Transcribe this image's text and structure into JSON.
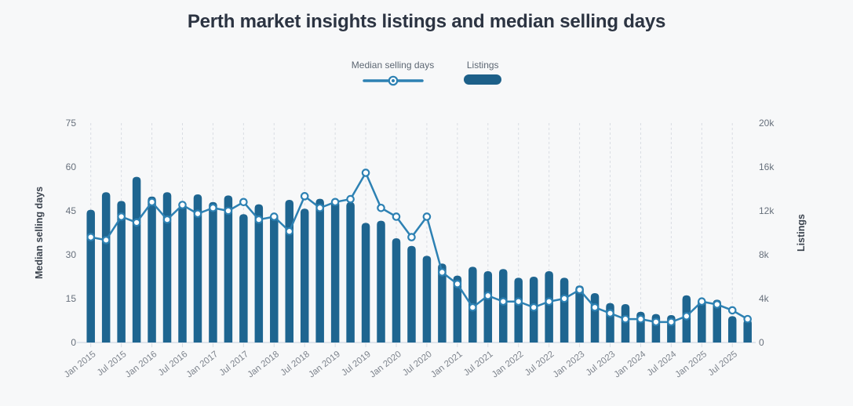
{
  "title": "Perth market insights listings and median selling days",
  "legend": [
    {
      "label": "Median selling days",
      "marker": "line-with-dot-icon"
    },
    {
      "label": "Listings",
      "marker": "rounded-bar-icon"
    }
  ],
  "colors": {
    "bar": "#1e6590",
    "line": "#2d81b3",
    "marker_fill": "#ffffff",
    "title": "#2c3442",
    "axis_tick_text": "#67707c",
    "x_label_text": "#7e848d",
    "axis_title_text": "#3b434e",
    "gridline": "#d9dde3",
    "baseline": "#dfe5ec",
    "background": "#f7f8f9"
  },
  "chart_data": {
    "type": "bar",
    "subtype": "combo-bar-line",
    "title": "Perth market insights listings and median selling days",
    "categories": [
      "Jan 2015",
      "Apr 2015",
      "Jul 2015",
      "Oct 2015",
      "Jan 2016",
      "Apr 2016",
      "Jul 2016",
      "Oct 2016",
      "Jan 2017",
      "Apr 2017",
      "Jul 2017",
      "Oct 2017",
      "Jan 2018",
      "Apr 2018",
      "Jul 2018",
      "Oct 2018",
      "Jan 2019",
      "Apr 2019",
      "Jul 2019",
      "Oct 2019",
      "Jan 2020",
      "Apr 2020",
      "Jul 2020",
      "Oct 2020",
      "Jan 2021",
      "Apr 2021",
      "Jul 2021",
      "Oct 2021",
      "Jan 2022",
      "Apr 2022",
      "Jul 2022",
      "Oct 2022",
      "Jan 2023",
      "Apr 2023",
      "Jul 2023",
      "Oct 2023",
      "Jan 2024",
      "Apr 2024",
      "Jul 2024",
      "Oct 2024",
      "Jan 2025",
      "Apr 2025",
      "Jul 2025",
      "Oct 2025"
    ],
    "x_tick_labels": [
      "Jan 2015",
      "Jul 2015",
      "Jan 2016",
      "Jul 2016",
      "Jan 2017",
      "Jul 2017",
      "Jan 2018",
      "Jul 2018",
      "Jan 2019",
      "Jul 2019",
      "Jan 2020",
      "Jul 2020",
      "Jan 2021",
      "Jul 2021",
      "Jan 2022",
      "Jul 2022",
      "Jan 2023",
      "Jul 2023",
      "Jan 2024",
      "Jul 2024",
      "Jan 2025",
      "Jul 2025"
    ],
    "series": [
      {
        "name": "Median selling days",
        "type": "line",
        "axis": "left",
        "values": [
          36,
          35,
          43,
          41,
          48,
          42,
          47,
          44,
          46,
          45,
          48,
          42,
          43,
          38,
          50,
          46,
          48,
          49,
          58,
          46,
          43,
          36,
          43,
          24,
          20,
          12,
          16,
          14,
          14,
          12,
          14,
          15,
          18,
          12,
          10,
          8,
          8,
          7,
          7,
          9,
          14,
          13,
          11,
          8
        ]
      },
      {
        "name": "Listings",
        "type": "bar",
        "axis": "right",
        "values": [
          12100,
          13700,
          12900,
          15100,
          13300,
          13700,
          12500,
          13500,
          12800,
          13400,
          11700,
          12600,
          11700,
          13000,
          12200,
          13100,
          12900,
          12800,
          10900,
          11100,
          9500,
          8800,
          7900,
          7200,
          6100,
          6900,
          6500,
          6700,
          5900,
          6000,
          6500,
          5900,
          5200,
          4500,
          3600,
          3500,
          2800,
          2600,
          2500,
          4300,
          4000,
          3900,
          2400,
          2100
        ]
      }
    ],
    "left_axis": {
      "title": "Median selling days",
      "ticks": [
        "0",
        "15",
        "30",
        "45",
        "60",
        "75"
      ],
      "tick_values": [
        0,
        15,
        30,
        45,
        60,
        75
      ],
      "range": [
        0,
        75
      ]
    },
    "right_axis": {
      "title": "Listings",
      "ticks": [
        "0",
        "4k",
        "8k",
        "12k",
        "16k",
        "20k"
      ],
      "tick_values": [
        0,
        4000,
        8000,
        12000,
        16000,
        20000
      ],
      "range": [
        0,
        20000
      ]
    },
    "grid": "vertical dashed lines at each Jan/Jul tick, no horizontal gridlines",
    "legend_position": "top center"
  }
}
